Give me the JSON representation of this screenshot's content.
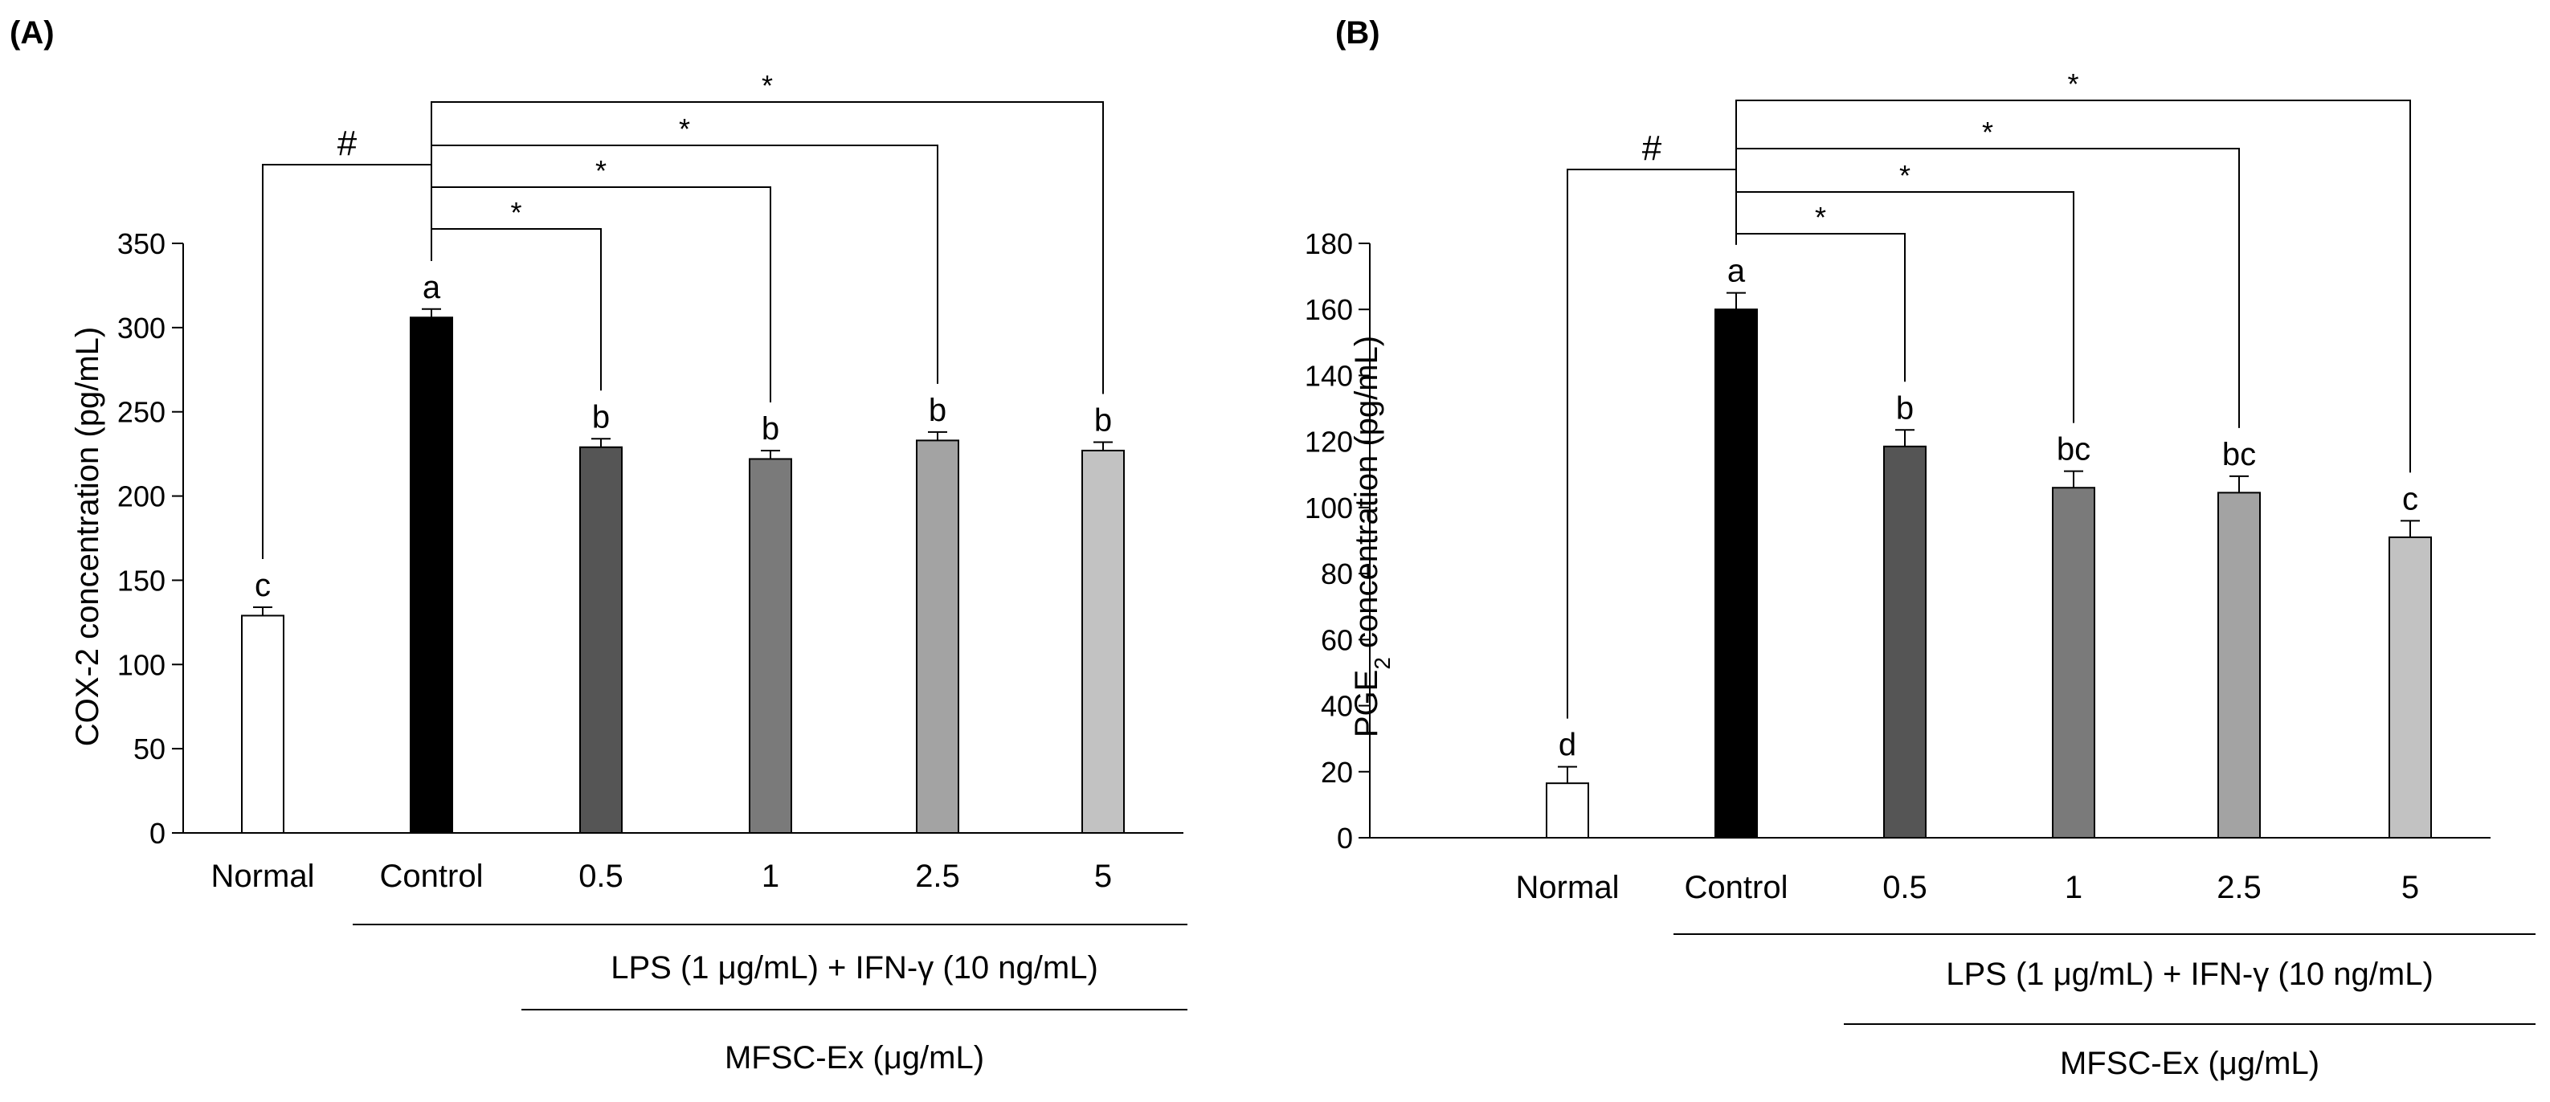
{
  "chart_data": [
    {
      "type": "bar",
      "panel_label": "(A)",
      "ylabel": "COX-2 concentration (pg/mL)",
      "ylim": [
        0,
        350
      ],
      "yticks": [
        0,
        50,
        100,
        150,
        200,
        250,
        300,
        350
      ],
      "categories": [
        "Normal",
        "Control",
        "0.5",
        "1",
        "2.5",
        "5"
      ],
      "values": [
        129,
        306,
        229,
        222,
        233,
        227
      ],
      "errors": [
        5,
        5,
        5,
        5,
        5,
        5
      ],
      "letters": [
        "c",
        "a",
        "b",
        "b",
        "b",
        "b"
      ],
      "colors": [
        "#ffffff",
        "#000000",
        "#555555",
        "#7a7a7a",
        "#a3a3a3",
        "#c2c2c2"
      ],
      "group_label_1": "LPS (1 μg/mL) + IFN-γ (10 ng/mL)",
      "group_label_2": "MFSC-Ex (μg/mL)",
      "hash_symbol": "#",
      "star_symbol": "*"
    },
    {
      "type": "bar",
      "panel_label": "(B)",
      "ylabel_main": "PGE",
      "ylabel_sub": "2",
      "ylabel_rest": " concentration (pg/mL)",
      "ylim": [
        0,
        180
      ],
      "yticks": [
        0,
        20,
        40,
        60,
        80,
        100,
        120,
        140,
        160,
        180
      ],
      "categories": [
        "Normal",
        "Control",
        "0.5",
        "1",
        "2.5",
        "5"
      ],
      "values": [
        16.5,
        160,
        118.5,
        106,
        104.5,
        91
      ],
      "errors": [
        5,
        5,
        5,
        5,
        5,
        5
      ],
      "letters": [
        "d",
        "a",
        "b",
        "bc",
        "bc",
        "c"
      ],
      "colors": [
        "#ffffff",
        "#000000",
        "#555555",
        "#7a7a7a",
        "#a3a3a3",
        "#c2c2c2"
      ],
      "group_label_1": "LPS (1 μg/mL) + IFN-γ (10 ng/mL)",
      "group_label_2": "MFSC-Ex (μg/mL)",
      "hash_symbol": "#",
      "star_symbol": "*"
    }
  ]
}
